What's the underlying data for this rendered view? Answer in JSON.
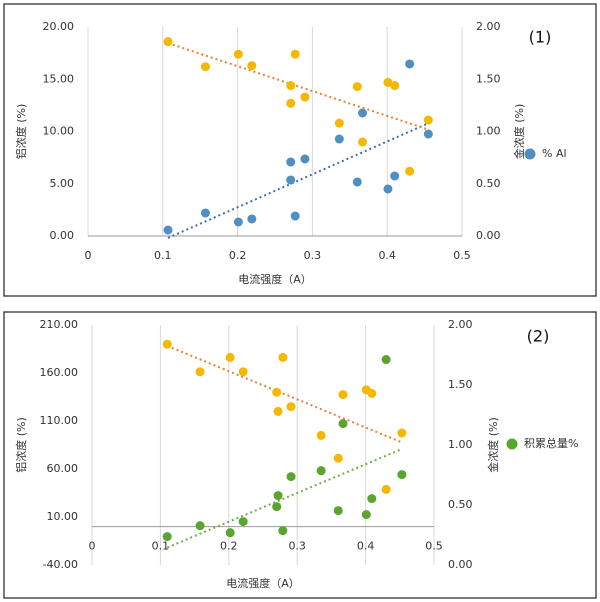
{
  "chart_data": [
    {
      "type": "scatter",
      "label": "(1)",
      "xlabel": "电流强度（A）",
      "ylabel": "铝浓度 (%)",
      "y2label": "金浓度 (%)",
      "x": [
        0.107,
        0.157,
        0.201,
        0.219,
        0.271,
        0.271,
        0.277,
        0.29,
        0.336,
        0.367,
        0.36,
        0.401,
        0.41,
        0.43,
        0.455
      ],
      "xlim": [
        0,
        0.5
      ],
      "xticks": [
        0,
        0.1,
        0.2,
        0.3,
        0.4,
        0.5
      ],
      "ylim": [
        0,
        20
      ],
      "yticks": [
        {
          "value": 0,
          "label": "0.00"
        },
        {
          "value": 5,
          "label": "5.00"
        },
        {
          "value": 10,
          "label": "10.00"
        },
        {
          "value": 15,
          "label": "15.00"
        },
        {
          "value": 20,
          "label": "20.00"
        }
      ],
      "y2lim": [
        0,
        2
      ],
      "y2ticks": [
        {
          "value": 0,
          "label": "0.00"
        },
        {
          "value": 0.5,
          "label": "0.50"
        },
        {
          "value": 1,
          "label": "1.00"
        },
        {
          "value": 1.5,
          "label": "1.50"
        },
        {
          "value": 2,
          "label": "2.00"
        }
      ],
      "trendline": true,
      "series": [
        {
          "name": "% Al",
          "color": "#4f90c0",
          "trend_color": "#3a6fc4",
          "values": [
            0.57,
            2.2,
            1.34,
            1.63,
            5.36,
            7.08,
            1.91,
            7.37,
            9.28,
            11.77,
            5.17,
            4.5,
            5.74,
            16.46,
            9.76
          ]
        },
        {
          "color": "#f5b800",
          "trend_color": "#ed7d31",
          "axis": "y2",
          "x": [
            0.107,
            0.157,
            0.201,
            0.219,
            0.271,
            0.271,
            0.277,
            0.29,
            0.336,
            0.36,
            0.367,
            0.401,
            0.41,
            0.43,
            0.455
          ],
          "values": [
            1.86,
            1.62,
            1.74,
            1.63,
            1.44,
            1.27,
            1.74,
            1.33,
            1.08,
            1.43,
            0.9,
            1.47,
            1.44,
            0.62,
            1.11
          ]
        }
      ]
    },
    {
      "type": "scatter",
      "label": "(2)",
      "xlabel": "电流强度（A）",
      "ylabel": "铝浓度 (%)",
      "y2label": "金浓度 (%)",
      "x": [
        0.11,
        0.158,
        0.202,
        0.221,
        0.27,
        0.272,
        0.279,
        0.291,
        0.335,
        0.367,
        0.36,
        0.401,
        0.409,
        0.43,
        0.453
      ],
      "xlim": [
        0,
        0.5
      ],
      "xticks": [
        0,
        0.1,
        0.2,
        0.3,
        0.4,
        0.5
      ],
      "ylim": [
        -40,
        210
      ],
      "yticks": [
        {
          "value": -40,
          "label": "-40.00"
        },
        {
          "value": 10,
          "label": "10.00"
        },
        {
          "value": 60,
          "label": "60.00"
        },
        {
          "value": 110,
          "label": "110.00"
        },
        {
          "value": 160,
          "label": "160.00"
        },
        {
          "value": 210,
          "label": "210.00"
        }
      ],
      "y2lim": [
        0,
        2
      ],
      "y2ticks": [
        {
          "value": 0,
          "label": "0.00"
        },
        {
          "value": 0.5,
          "label": "0.50"
        },
        {
          "value": 1,
          "label": "1.00"
        },
        {
          "value": 1.5,
          "label": "1.50"
        },
        {
          "value": 2,
          "label": "2.00"
        }
      ],
      "trendline": true,
      "series": [
        {
          "name": "积累总量%",
          "color": "#5aa530",
          "trend_color": "#70ad47",
          "values": [
            -10.4,
            1.0,
            -6.3,
            5.2,
            20.8,
            32.3,
            -4.2,
            52.1,
            58.3,
            107.3,
            16.7,
            12.5,
            29.2,
            174,
            54.2
          ]
        },
        {
          "color": "#f5b800",
          "trend_color": "#ed7d31",
          "axis": "y2",
          "values": [
            1.84,
            1.61,
            1.73,
            1.61,
            1.44,
            1.28,
            1.73,
            1.32,
            1.08,
            1.42,
            0.89,
            1.46,
            1.43,
            0.63,
            1.1
          ]
        }
      ]
    }
  ]
}
